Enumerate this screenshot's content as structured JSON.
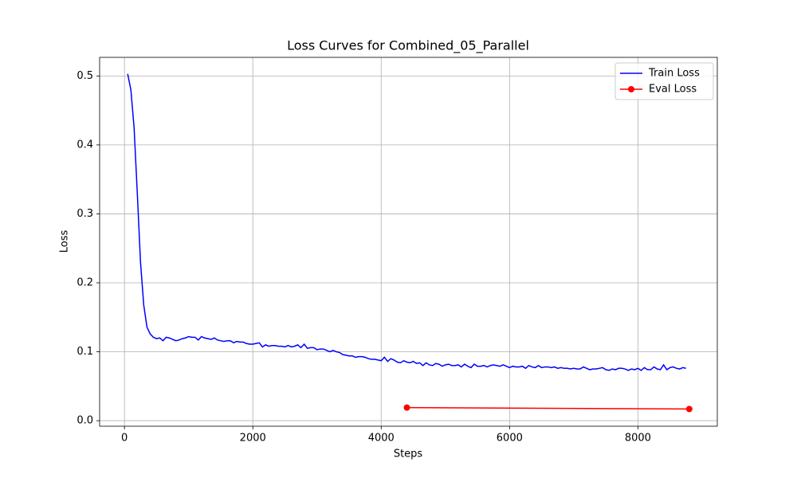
{
  "chart_data": {
    "type": "line",
    "title": "Loss Curves for Combined_05_Parallel",
    "x_label": "Steps",
    "y_label": "Loss",
    "xlim": [
      -387,
      9237
    ],
    "ylim": [
      -0.008,
      0.527
    ],
    "xticks": [
      0,
      2000,
      4000,
      6000,
      8000
    ],
    "yticks": [
      {
        "value": 0,
        "label": "0.0"
      },
      0.1,
      0.2,
      0.3,
      0.4,
      0.5
    ],
    "grid": true,
    "legend": "upper-right",
    "series": [
      {
        "name": "Train Loss",
        "color": "#0000ff",
        "marker": false,
        "x": [
          50,
          100,
          150,
          200,
          250,
          300,
          350,
          400,
          450,
          500,
          550,
          600,
          650,
          700,
          750,
          800,
          850,
          900,
          950,
          1000,
          1050,
          1100,
          1150,
          1200,
          1250,
          1300,
          1350,
          1400,
          1450,
          1500,
          1550,
          1600,
          1650,
          1700,
          1750,
          1800,
          1850,
          1900,
          1950,
          2000,
          2050,
          2100,
          2150,
          2200,
          2250,
          2300,
          2350,
          2400,
          2450,
          2500,
          2550,
          2600,
          2650,
          2700,
          2750,
          2800,
          2850,
          2900,
          2950,
          3000,
          3050,
          3100,
          3150,
          3200,
          3250,
          3300,
          3350,
          3400,
          3450,
          3500,
          3550,
          3600,
          3650,
          3700,
          3750,
          3800,
          3850,
          3900,
          3950,
          4000,
          4050,
          4100,
          4150,
          4200,
          4250,
          4300,
          4350,
          4400,
          4450,
          4500,
          4550,
          4600,
          4650,
          4700,
          4750,
          4800,
          4850,
          4900,
          4950,
          5000,
          5050,
          5100,
          5150,
          5200,
          5250,
          5300,
          5350,
          5400,
          5450,
          5500,
          5550,
          5600,
          5650,
          5700,
          5750,
          5800,
          5850,
          5900,
          5950,
          6000,
          6050,
          6100,
          6150,
          6200,
          6250,
          6300,
          6350,
          6400,
          6450,
          6500,
          6550,
          6600,
          6650,
          6700,
          6750,
          6800,
          6850,
          6900,
          6950,
          7000,
          7050,
          7100,
          7150,
          7200,
          7250,
          7300,
          7350,
          7400,
          7450,
          7500,
          7550,
          7600,
          7650,
          7700,
          7750,
          7800,
          7850,
          7900,
          7950,
          8000,
          8050,
          8100,
          8150,
          8200,
          8250,
          8300,
          8350,
          8400,
          8450,
          8500,
          8550,
          8600,
          8650,
          8700,
          8750
        ],
        "values": [
          0.503,
          0.48,
          0.425,
          0.33,
          0.23,
          0.168,
          0.136,
          0.126,
          0.121,
          0.119,
          0.12,
          0.116,
          0.121,
          0.12,
          0.118,
          0.116,
          0.117,
          0.119,
          0.12,
          0.122,
          0.121,
          0.121,
          0.117,
          0.122,
          0.12,
          0.119,
          0.118,
          0.12,
          0.117,
          0.116,
          0.115,
          0.116,
          0.116,
          0.113,
          0.115,
          0.114,
          0.114,
          0.112,
          0.111,
          0.111,
          0.112,
          0.113,
          0.107,
          0.11,
          0.108,
          0.109,
          0.109,
          0.108,
          0.108,
          0.107,
          0.109,
          0.107,
          0.108,
          0.11,
          0.106,
          0.111,
          0.105,
          0.106,
          0.106,
          0.103,
          0.104,
          0.104,
          0.102,
          0.1,
          0.102,
          0.1,
          0.099,
          0.096,
          0.095,
          0.094,
          0.094,
          0.092,
          0.093,
          0.093,
          0.092,
          0.09,
          0.089,
          0.089,
          0.088,
          0.087,
          0.092,
          0.086,
          0.09,
          0.088,
          0.085,
          0.084,
          0.087,
          0.085,
          0.084,
          0.086,
          0.083,
          0.084,
          0.08,
          0.084,
          0.081,
          0.08,
          0.083,
          0.082,
          0.079,
          0.081,
          0.082,
          0.08,
          0.08,
          0.081,
          0.078,
          0.082,
          0.079,
          0.077,
          0.082,
          0.079,
          0.079,
          0.08,
          0.078,
          0.08,
          0.081,
          0.08,
          0.079,
          0.081,
          0.079,
          0.077,
          0.079,
          0.078,
          0.078,
          0.079,
          0.076,
          0.08,
          0.078,
          0.077,
          0.08,
          0.077,
          0.078,
          0.078,
          0.077,
          0.078,
          0.076,
          0.077,
          0.076,
          0.076,
          0.075,
          0.076,
          0.075,
          0.075,
          0.078,
          0.076,
          0.074,
          0.075,
          0.075,
          0.076,
          0.077,
          0.074,
          0.073,
          0.075,
          0.074,
          0.076,
          0.076,
          0.075,
          0.073,
          0.075,
          0.074,
          0.076,
          0.073,
          0.077,
          0.074,
          0.074,
          0.078,
          0.075,
          0.074,
          0.081,
          0.074,
          0.077,
          0.078,
          0.076,
          0.075,
          0.077,
          0.076
        ]
      },
      {
        "name": "Eval Loss",
        "color": "#ff0000",
        "marker": true,
        "x": [
          4400,
          8800
        ],
        "values": [
          0.019,
          0.017
        ]
      }
    ]
  }
}
